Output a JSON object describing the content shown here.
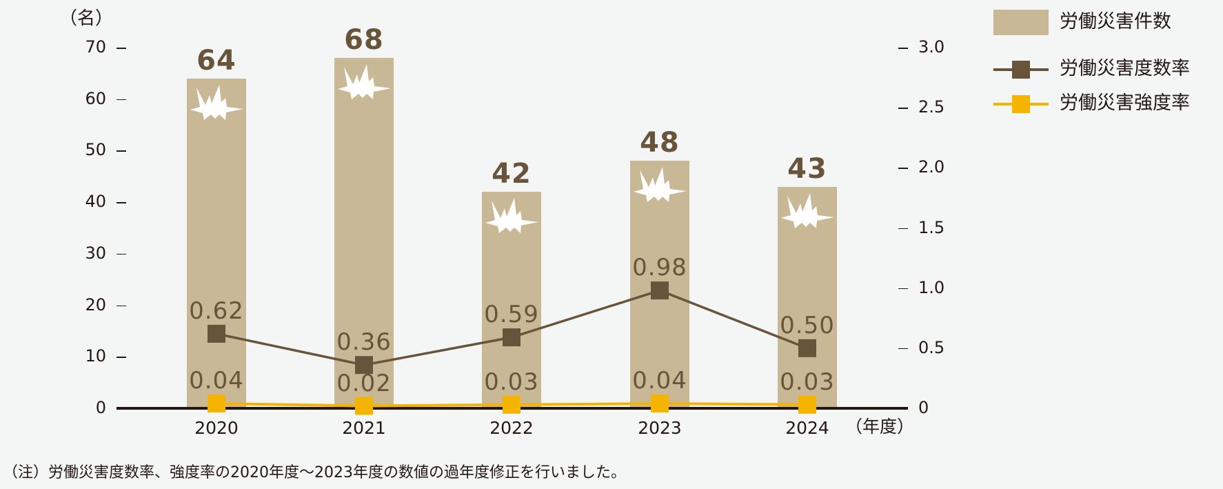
{
  "chart_data": {
    "type": "bar+line",
    "title": "",
    "categories": [
      "2020",
      "2021",
      "2022",
      "2023",
      "2024"
    ],
    "xlabel": "（年度）",
    "ylabel_left": "（名）",
    "ylabel_right": "",
    "ylim_left": [
      0,
      70
    ],
    "ylim_right": [
      0,
      3.0
    ],
    "yticks_left": [
      "0",
      "10",
      "20",
      "30",
      "40",
      "50",
      "60",
      "70"
    ],
    "yticks_right": [
      "0",
      "0.5",
      "1.0",
      "1.5",
      "2.0",
      "2.5",
      "3.0"
    ],
    "grid": false,
    "legend_position": "top-right",
    "series": [
      {
        "name": "労働災害件数",
        "type": "bar",
        "axis": "left",
        "color": "#c9b896",
        "values": [
          64,
          68,
          42,
          48,
          43
        ],
        "labels": [
          "64",
          "68",
          "42",
          "48",
          "43"
        ]
      },
      {
        "name": "労働災害度数率",
        "type": "line",
        "axis": "right",
        "color": "#68543a",
        "values": [
          0.62,
          0.36,
          0.59,
          0.98,
          0.5
        ],
        "labels": [
          "0.62",
          "0.36",
          "0.59",
          "0.98",
          "0.50"
        ]
      },
      {
        "name": "労働災害強度率",
        "type": "line",
        "axis": "right",
        "color": "#f5b400",
        "values": [
          0.04,
          0.02,
          0.03,
          0.04,
          0.03
        ],
        "labels": [
          "0.04",
          "0.02",
          "0.03",
          "0.04",
          "0.03"
        ]
      }
    ],
    "annotations": [
      "starburst-icon on each bar"
    ]
  },
  "axis": {
    "left_unit": "（名）",
    "x_unit": "（年度）"
  },
  "legend": {
    "items": [
      {
        "label": "労働災害件数",
        "swatch": "bar",
        "color": "#c9b896"
      },
      {
        "label": "労働災害度数率",
        "swatch": "line-square",
        "color": "#68543a"
      },
      {
        "label": "労働災害強度率",
        "swatch": "line-square",
        "color": "#f5b400"
      }
    ]
  },
  "footnote": "（注）労働災害度数率、強度率の2020年度～2023年度の数値の過年度修正を行いました。"
}
